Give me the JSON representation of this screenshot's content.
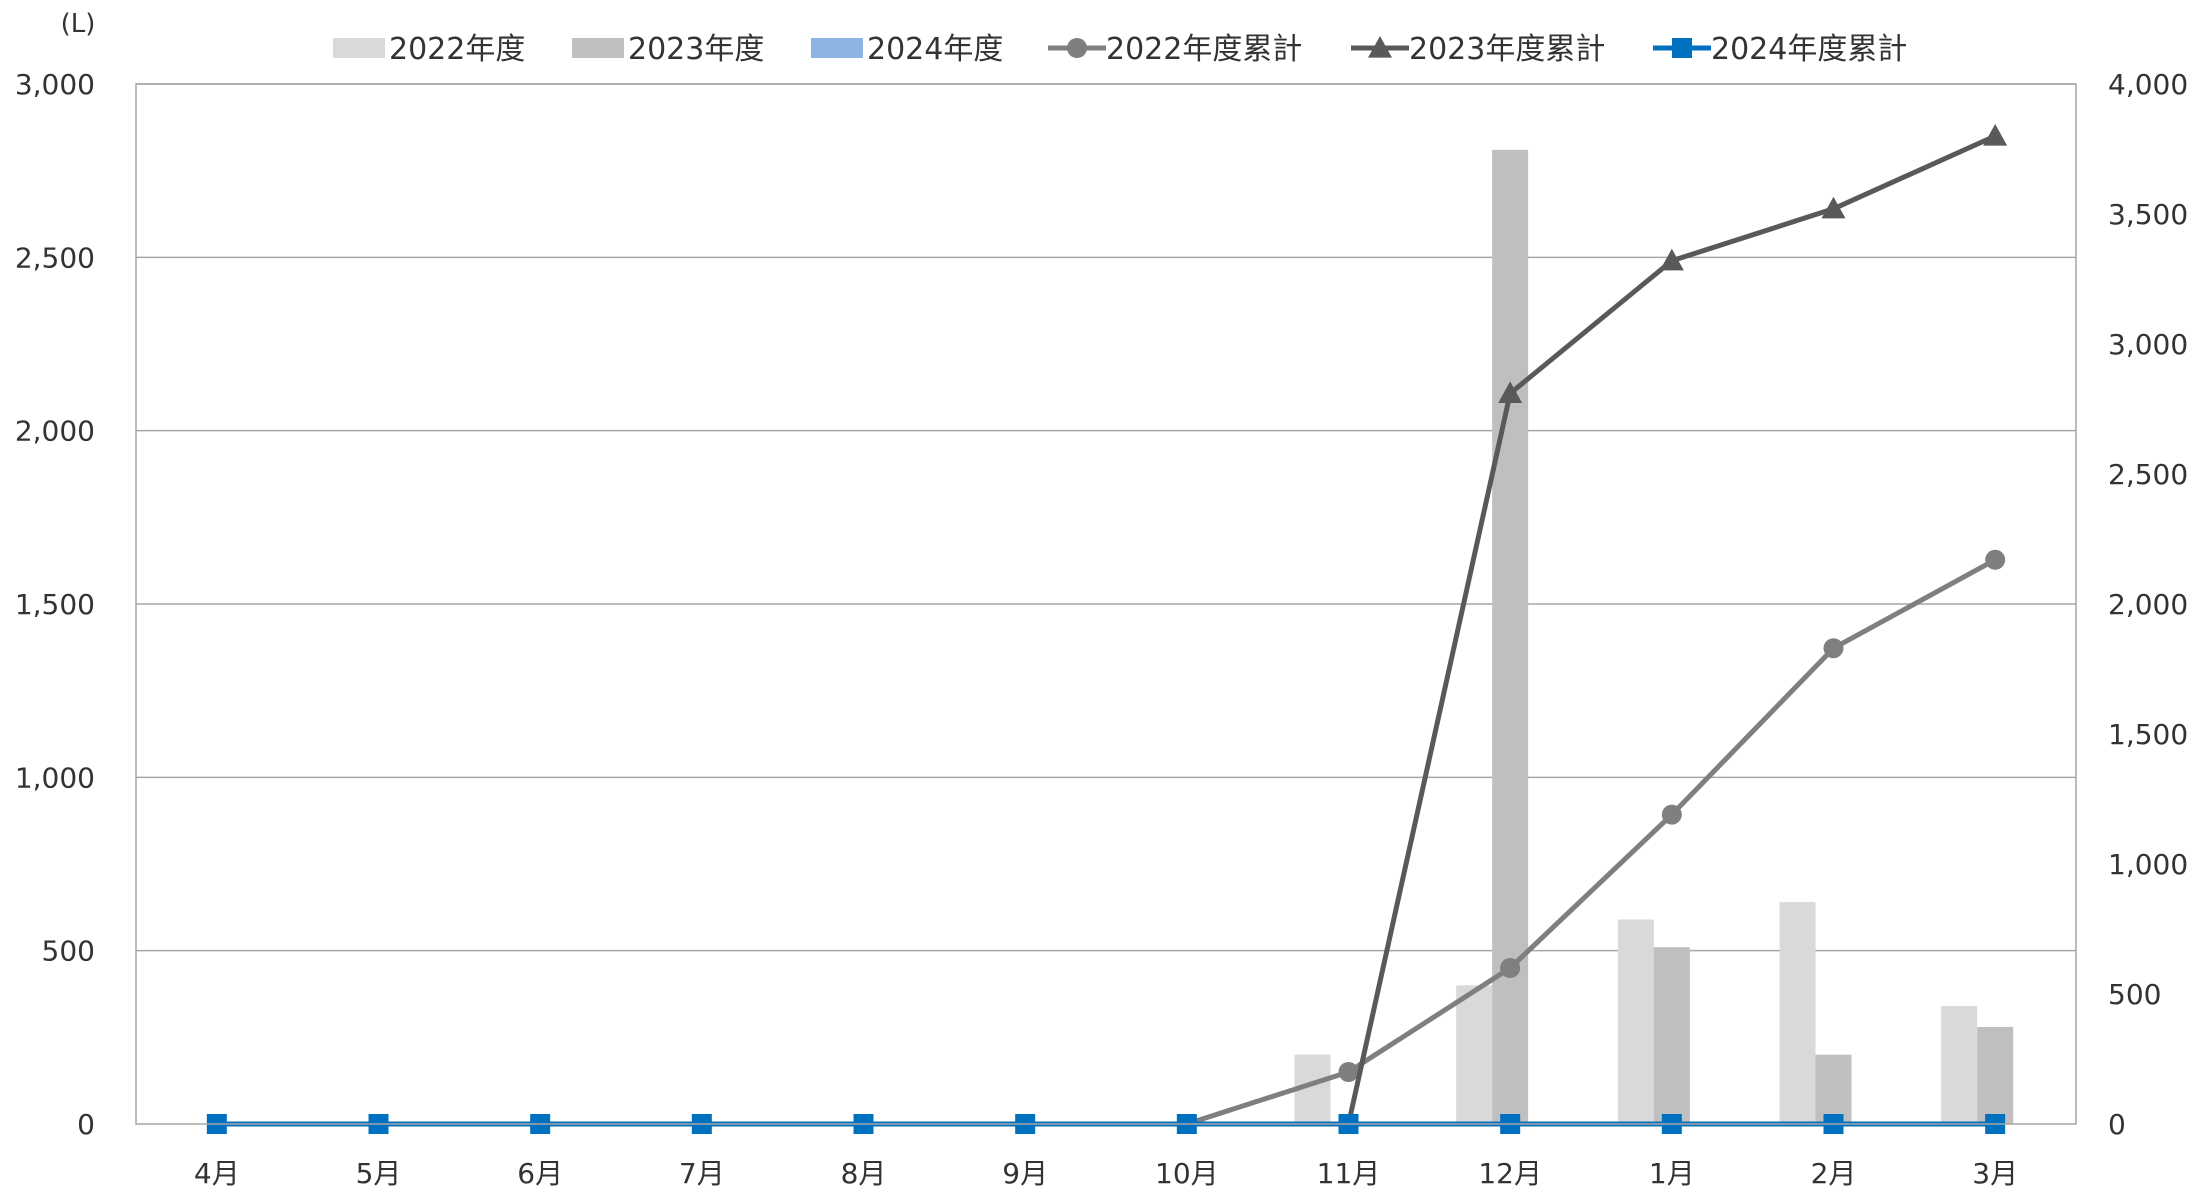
{
  "chart_data": {
    "type": "bar",
    "y_unit_label": "(L)",
    "categories": [
      "4月",
      "5月",
      "6月",
      "7月",
      "8月",
      "9月",
      "10月",
      "11月",
      "12月",
      "1月",
      "2月",
      "3月"
    ],
    "y_left": {
      "range": [
        0,
        3000
      ],
      "ticks": [
        0,
        500,
        1000,
        1500,
        2000,
        2500,
        3000
      ],
      "tick_labels": [
        "0",
        "500",
        "1,000",
        "1,500",
        "2,000",
        "2,500",
        "3,000"
      ]
    },
    "y_right": {
      "range": [
        0,
        4000
      ],
      "ticks": [
        0,
        500,
        1000,
        1500,
        2000,
        2500,
        3000,
        3500,
        4000
      ],
      "tick_labels": [
        "0",
        "500",
        "1,000",
        "1,500",
        "2,000",
        "2,500",
        "3,000",
        "3,500",
        "4,000"
      ]
    },
    "grid": true,
    "legend_position": "top",
    "bar_series": [
      {
        "name": "2022年度",
        "color": "#d9d9d9",
        "values": [
          0,
          0,
          0,
          0,
          0,
          0,
          0,
          200,
          400,
          590,
          640,
          340
        ]
      },
      {
        "name": "2023年度",
        "color": "#bfbfbf",
        "values": [
          0,
          0,
          0,
          0,
          0,
          0,
          0,
          0,
          2810,
          510,
          200,
          280
        ]
      },
      {
        "name": "2024年度",
        "color": "#8eb4e3",
        "values": [
          0,
          0,
          0,
          0,
          0,
          0,
          0,
          0,
          0,
          0,
          0,
          0
        ]
      }
    ],
    "line_series": [
      {
        "name": "2022年度累計",
        "color": "#7f7f7f",
        "marker": "circle",
        "axis": "right",
        "values": [
          0,
          0,
          0,
          0,
          0,
          0,
          0,
          200,
          600,
          1190,
          1830,
          2170
        ]
      },
      {
        "name": "2023年度累計",
        "color": "#595959",
        "marker": "triangle",
        "axis": "right",
        "values": [
          null,
          null,
          null,
          null,
          null,
          null,
          null,
          0,
          2810,
          3320,
          3520,
          3800
        ]
      },
      {
        "name": "2024年度累計",
        "color": "#0070c0",
        "marker": "square",
        "axis": "right",
        "values": [
          0,
          0,
          0,
          0,
          0,
          0,
          0,
          0,
          0,
          0,
          0,
          0
        ]
      }
    ]
  }
}
